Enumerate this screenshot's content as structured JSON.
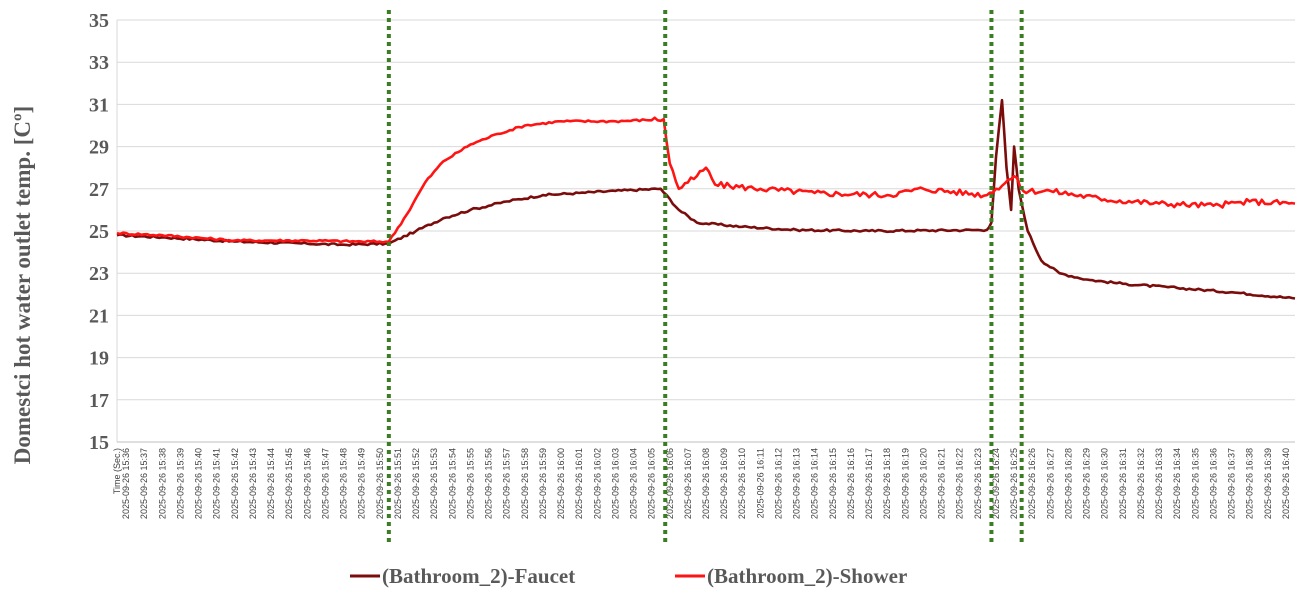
{
  "chart_data": {
    "type": "line",
    "title": "",
    "ylabel": "Domestci hot water outlet temp. [Cº]",
    "ylim": [
      15,
      35
    ],
    "yticks": [
      15,
      17,
      19,
      21,
      23,
      25,
      27,
      29,
      31,
      33,
      35
    ],
    "x_first_label": "Time (Sec.)",
    "x_tick_labels": [
      "2025-09-26 15:36",
      "2025-09-26 15:37",
      "2025-09-26 15:38",
      "2025-09-26 15:39",
      "2025-09-26 15:40",
      "2025-09-26 15:41",
      "2025-09-26 15:42",
      "2025-09-26 15:43",
      "2025-09-26 15:44",
      "2025-09-26 15:45",
      "2025-09-26 15:46",
      "2025-09-26 15:47",
      "2025-09-26 15:48",
      "2025-09-26 15:49",
      "2025-09-26 15:50",
      "2025-09-26 15:51",
      "2025-09-26 15:52",
      "2025-09-26 15:53",
      "2025-09-26 15:54",
      "2025-09-26 15:55",
      "2025-09-26 15:56",
      "2025-09-26 15:57",
      "2025-09-26 15:58",
      "2025-09-26 15:59",
      "2025-09-26 16:00",
      "2025-09-26 16:01",
      "2025-09-26 16:02",
      "2025-09-26 16:03",
      "2025-09-26 16:04",
      "2025-09-26 16:05",
      "2025-09-26 16:06",
      "2025-09-26 16:07",
      "2025-09-26 16:08",
      "2025-09-26 16:09",
      "2025-09-26 16:10",
      "2025-09-26 16:11",
      "2025-09-26 16:12",
      "2025-09-26 16:13",
      "2025-09-26 16:14",
      "2025-09-26 16:15",
      "2025-09-26 16:16",
      "2025-09-26 16:17",
      "2025-09-26 16:18",
      "2025-09-26 16:19",
      "2025-09-26 16:20",
      "2025-09-26 16:21",
      "2025-09-26 16:22",
      "2025-09-26 16:23",
      "2025-09-26 16:24",
      "2025-09-26 16:25",
      "2025-09-26 16:26",
      "2025-09-26 16:27",
      "2025-09-26 16:28",
      "2025-09-26 16:29",
      "2025-09-26 16:30",
      "2025-09-26 16:31",
      "2025-09-26 16:32",
      "2025-09-26 16:33",
      "2025-09-26 16:34",
      "2025-09-26 16:35",
      "2025-09-26 16:36",
      "2025-09-26 16:37",
      "2025-09-26 16:38",
      "2025-09-26 16:39",
      "2025-09-26 16:40"
    ],
    "xlim_minutes": [
      15.6,
      16.7
    ],
    "grid": "horizontal",
    "legend_position": "bottom-center",
    "vertical_markers": [
      {
        "x": "15:50:30",
        "color": "#3a7d22",
        "style": "dotted"
      },
      {
        "x": "16:05:45",
        "color": "#3a7d22",
        "style": "dotted"
      },
      {
        "x": "16:23:45",
        "color": "#3a7d22",
        "style": "dotted"
      },
      {
        "x": "16:25:25",
        "color": "#3a7d22",
        "style": "dotted"
      }
    ],
    "series": [
      {
        "name": "(Bathroom_2)-Faucet",
        "color": "#7b0c0c",
        "points": [
          [
            "15:35:30",
            24.8
          ],
          [
            "15:38:00",
            24.7
          ],
          [
            "15:42:00",
            24.5
          ],
          [
            "15:46:00",
            24.4
          ],
          [
            "15:48:00",
            24.35
          ],
          [
            "15:50:30",
            24.4
          ],
          [
            "15:52:00",
            25.0
          ],
          [
            "15:53:30",
            25.6
          ],
          [
            "15:55:00",
            26.0
          ],
          [
            "15:57:00",
            26.4
          ],
          [
            "15:59:00",
            26.7
          ],
          [
            "16:01:00",
            26.8
          ],
          [
            "16:03:00",
            26.9
          ],
          [
            "16:05:30",
            27.0
          ],
          [
            "16:06:30",
            26.0
          ],
          [
            "16:07:30",
            25.4
          ],
          [
            "16:10:00",
            25.2
          ],
          [
            "16:13:00",
            25.05
          ],
          [
            "16:17:00",
            25.0
          ],
          [
            "16:23:30",
            25.05
          ],
          [
            "16:23:45",
            25.4
          ],
          [
            "16:24:00",
            28.5
          ],
          [
            "16:24:20",
            31.2
          ],
          [
            "16:24:35",
            28.0
          ],
          [
            "16:24:50",
            26.0
          ],
          [
            "16:25:00",
            29.0
          ],
          [
            "16:25:15",
            27.0
          ],
          [
            "16:25:45",
            25.0
          ],
          [
            "16:26:30",
            23.6
          ],
          [
            "16:27:30",
            23.0
          ],
          [
            "16:29:00",
            22.7
          ],
          [
            "16:31:00",
            22.5
          ],
          [
            "16:34:00",
            22.3
          ],
          [
            "16:37:00",
            22.1
          ],
          [
            "16:40:30",
            21.8
          ]
        ]
      },
      {
        "name": "(Bathroom_2)-Shower",
        "color": "#ff1414",
        "points": [
          [
            "15:35:30",
            24.9
          ],
          [
            "15:38:00",
            24.8
          ],
          [
            "15:42:00",
            24.55
          ],
          [
            "15:46:00",
            24.55
          ],
          [
            "15:49:00",
            24.5
          ],
          [
            "15:50:30",
            24.5
          ],
          [
            "15:51:30",
            25.8
          ],
          [
            "15:52:30",
            27.3
          ],
          [
            "15:53:30",
            28.3
          ],
          [
            "15:55:00",
            29.1
          ],
          [
            "15:56:30",
            29.6
          ],
          [
            "15:58:00",
            30.0
          ],
          [
            "16:00:00",
            30.2
          ],
          [
            "16:03:00",
            30.2
          ],
          [
            "16:05:40",
            30.3
          ],
          [
            "16:06:00",
            28.2
          ],
          [
            "16:06:30",
            27.0
          ],
          [
            "16:07:00",
            27.3
          ],
          [
            "16:07:30",
            27.6
          ],
          [
            "16:08:00",
            28.0
          ],
          [
            "16:08:30",
            27.2
          ],
          [
            "16:11:00",
            27.0
          ],
          [
            "16:14:00",
            26.8
          ],
          [
            "16:18:00",
            26.7
          ],
          [
            "16:20:00",
            27.0
          ],
          [
            "16:23:30",
            26.7
          ],
          [
            "16:24:00",
            27.0
          ],
          [
            "16:25:00",
            27.6
          ],
          [
            "16:25:30",
            26.9
          ],
          [
            "16:27:00",
            26.9
          ],
          [
            "16:30:00",
            26.5
          ],
          [
            "16:33:00",
            26.3
          ],
          [
            "16:36:00",
            26.2
          ],
          [
            "16:38:00",
            26.4
          ],
          [
            "16:40:30",
            26.3
          ]
        ]
      }
    ]
  }
}
